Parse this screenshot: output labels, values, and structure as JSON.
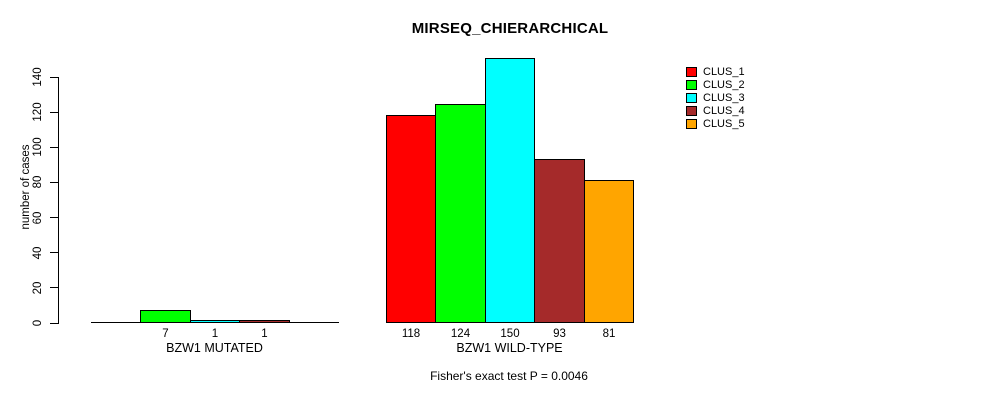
{
  "title": "MIRSEQ_CHIERARCHICAL",
  "y_axis": {
    "label": "number of cases",
    "ticks": [
      0,
      20,
      40,
      60,
      80,
      100,
      120,
      140
    ]
  },
  "legend": {
    "entries": [
      {
        "label": "CLUS_1",
        "color": "#ff0000"
      },
      {
        "label": "CLUS_2",
        "color": "#00ff00"
      },
      {
        "label": "CLUS_3",
        "color": "#00ffff"
      },
      {
        "label": "CLUS_4",
        "color": "#a52a2a"
      },
      {
        "label": "CLUS_5",
        "color": "#ffa500"
      }
    ]
  },
  "footer": "Fisher's exact test P = 0.0046",
  "chart_data": {
    "type": "bar",
    "title": "MIRSEQ_CHIERARCHICAL",
    "xlabel": "",
    "ylabel": "number of cases",
    "ylim": [
      0,
      150
    ],
    "yticks": [
      0,
      20,
      40,
      60,
      80,
      100,
      120,
      140
    ],
    "grid": false,
    "legend_position": "top-right",
    "categories": [
      "BZW1 MUTATED",
      "BZW1 WILD-TYPE"
    ],
    "series": [
      {
        "name": "CLUS_1",
        "color": "#ff0000",
        "values": [
          0,
          118
        ]
      },
      {
        "name": "CLUS_2",
        "color": "#00ff00",
        "values": [
          7,
          124
        ]
      },
      {
        "name": "CLUS_3",
        "color": "#00ffff",
        "values": [
          1,
          150
        ]
      },
      {
        "name": "CLUS_4",
        "color": "#a52a2a",
        "values": [
          1,
          93
        ]
      },
      {
        "name": "CLUS_5",
        "color": "#ffa500",
        "values": [
          0,
          81
        ]
      }
    ],
    "value_labels": {
      "BZW1 MUTATED": [
        7,
        1,
        1
      ],
      "BZW1 WILD-TYPE": [
        118,
        124,
        150,
        93,
        81
      ]
    },
    "annotation": "Fisher's exact test P = 0.0046"
  }
}
